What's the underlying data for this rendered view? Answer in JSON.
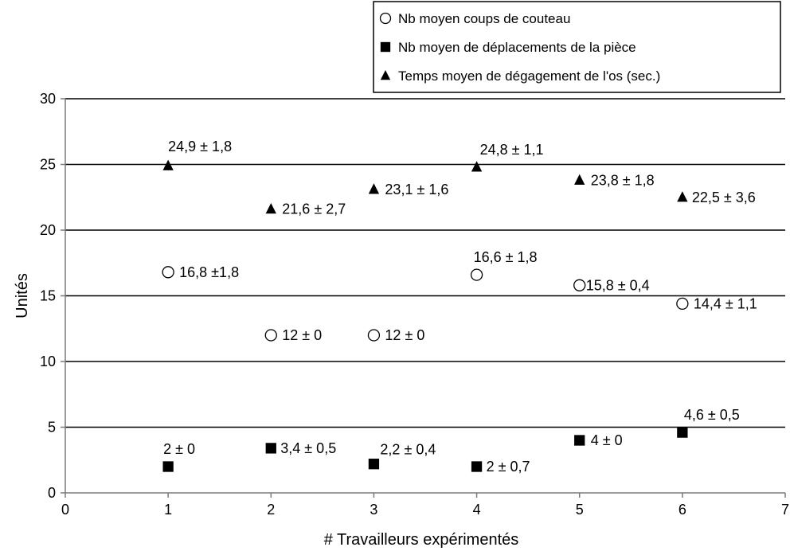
{
  "chart_data": {
    "type": "scatter",
    "title": "",
    "xlabel": "# Travailleurs expérimentés",
    "ylabel": "Unités",
    "xlim": [
      0,
      7
    ],
    "ylim": [
      0,
      30
    ],
    "xticks": [
      "0",
      "1",
      "2",
      "3",
      "4",
      "5",
      "6",
      "7"
    ],
    "yticks": [
      "0",
      "5",
      "10",
      "15",
      "20",
      "25",
      "30"
    ],
    "grid": "horizontal",
    "legend_position": "top-right",
    "series": [
      {
        "name": "Nb moyen coups de couteau",
        "marker": "open-circle",
        "x": [
          1,
          2,
          3,
          4,
          5,
          6
        ],
        "y": [
          16.8,
          12,
          12,
          16.6,
          15.8,
          14.4
        ],
        "labels": [
          "16,8 ±1,8",
          "12 ± 0",
          "12 ± 0",
          "16,6 ± 1,8",
          "15,8 ± 0,4",
          "14,4 ± 1,1"
        ]
      },
      {
        "name": "Nb moyen de déplacements de la pièce",
        "marker": "filled-square",
        "x": [
          1,
          2,
          3,
          4,
          5,
          6
        ],
        "y": [
          2,
          3.4,
          2.2,
          2,
          4,
          4.6
        ],
        "labels": [
          "2 ± 0",
          "3,4 ± 0,5",
          "2,2 ± 0,4",
          "2 ± 0,7",
          "4 ± 0",
          "4,6 ± 0,5"
        ]
      },
      {
        "name": "Temps moyen de dégagement de l'os (sec.)",
        "marker": "filled-triangle",
        "x": [
          1,
          2,
          3,
          4,
          5,
          6
        ],
        "y": [
          24.9,
          21.6,
          23.1,
          24.8,
          23.8,
          22.5
        ],
        "labels": [
          "24,9 ± 1,8",
          "21,6 ± 2,7",
          "23,1 ± 1,6",
          "24,8 ± 1,1",
          "23,8 ± 1,8",
          "22,5 ± 3,6"
        ]
      }
    ]
  }
}
